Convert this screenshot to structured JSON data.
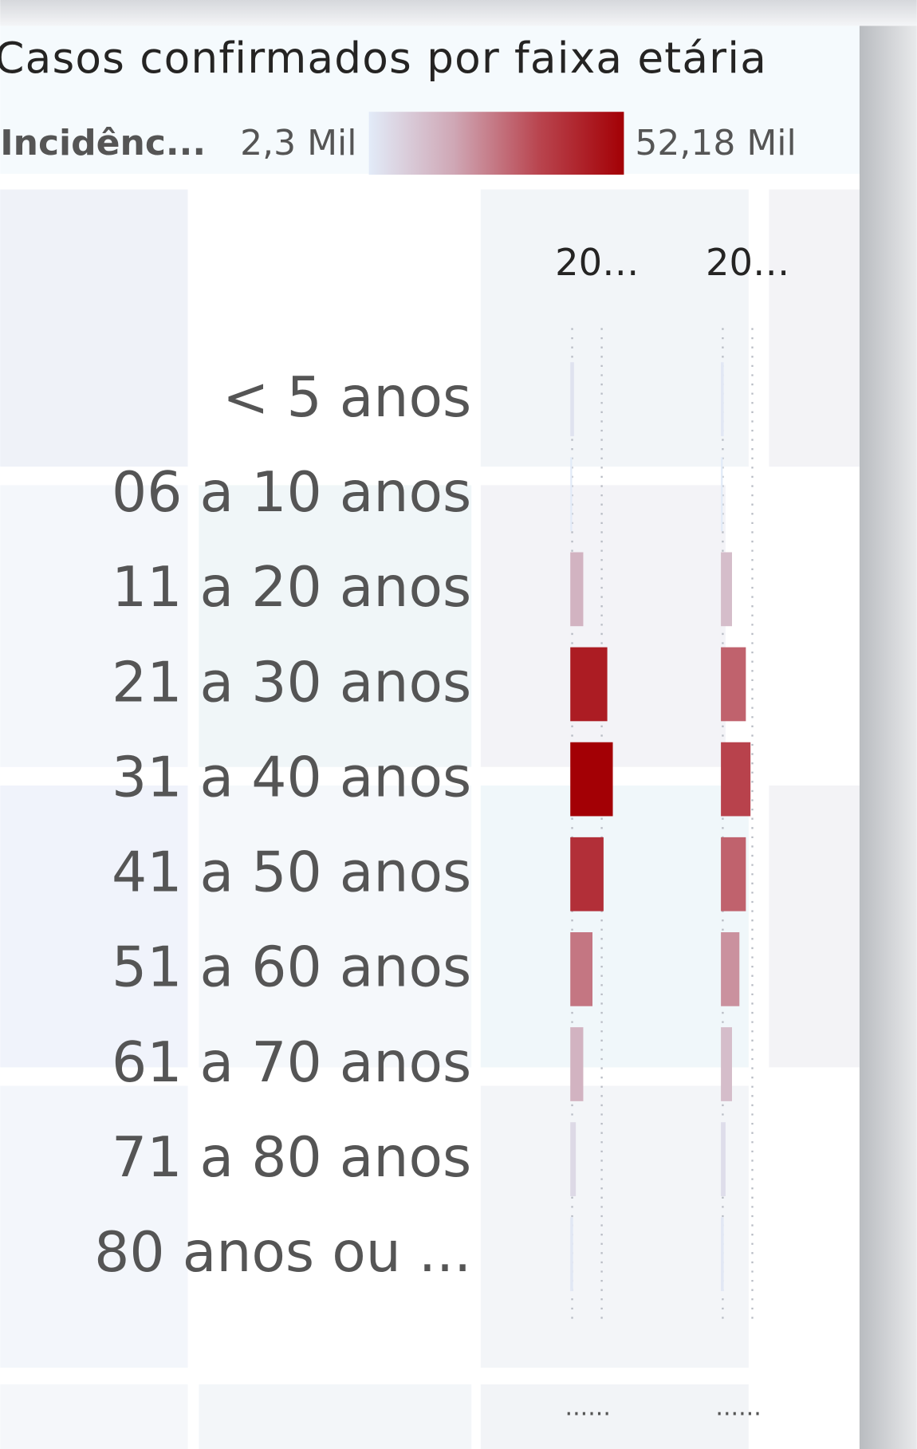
{
  "chart_data": {
    "type": "bar",
    "orientation": "horizontal",
    "title": "Casos confirmados por faixa etária",
    "legend": {
      "title": "Incidênc...",
      "min": {
        "value": 2300,
        "label": "2,3 Mil"
      },
      "max": {
        "value": 52180,
        "label": "52,18 Mil"
      },
      "colors": [
        "#e2ebf8",
        "#cfa7b5",
        "#b9454f",
        "#a30005"
      ]
    },
    "categories": [
      "< 5 anos",
      "06 a 10 anos",
      "11 a 20 anos",
      "21 a 30 anos",
      "31 a 40 anos",
      "41 a 50 anos",
      "51 a 60 anos",
      "61 a 70 anos",
      "71 a 80 anos",
      "80 anos ou ..."
    ],
    "series": [
      {
        "name": "20…",
        "values": [
          4500,
          2300,
          15900,
          45400,
          52180,
          40800,
          27200,
          15900,
          6800,
          3400
        ]
      },
      {
        "name": "20…",
        "values": [
          3400,
          2300,
          13600,
          30600,
          36300,
          30600,
          22700,
          13600,
          5700,
          3400
        ]
      }
    ],
    "xlim": [
      0,
      52180
    ],
    "footer_labels": [
      "......",
      "......"
    ]
  }
}
